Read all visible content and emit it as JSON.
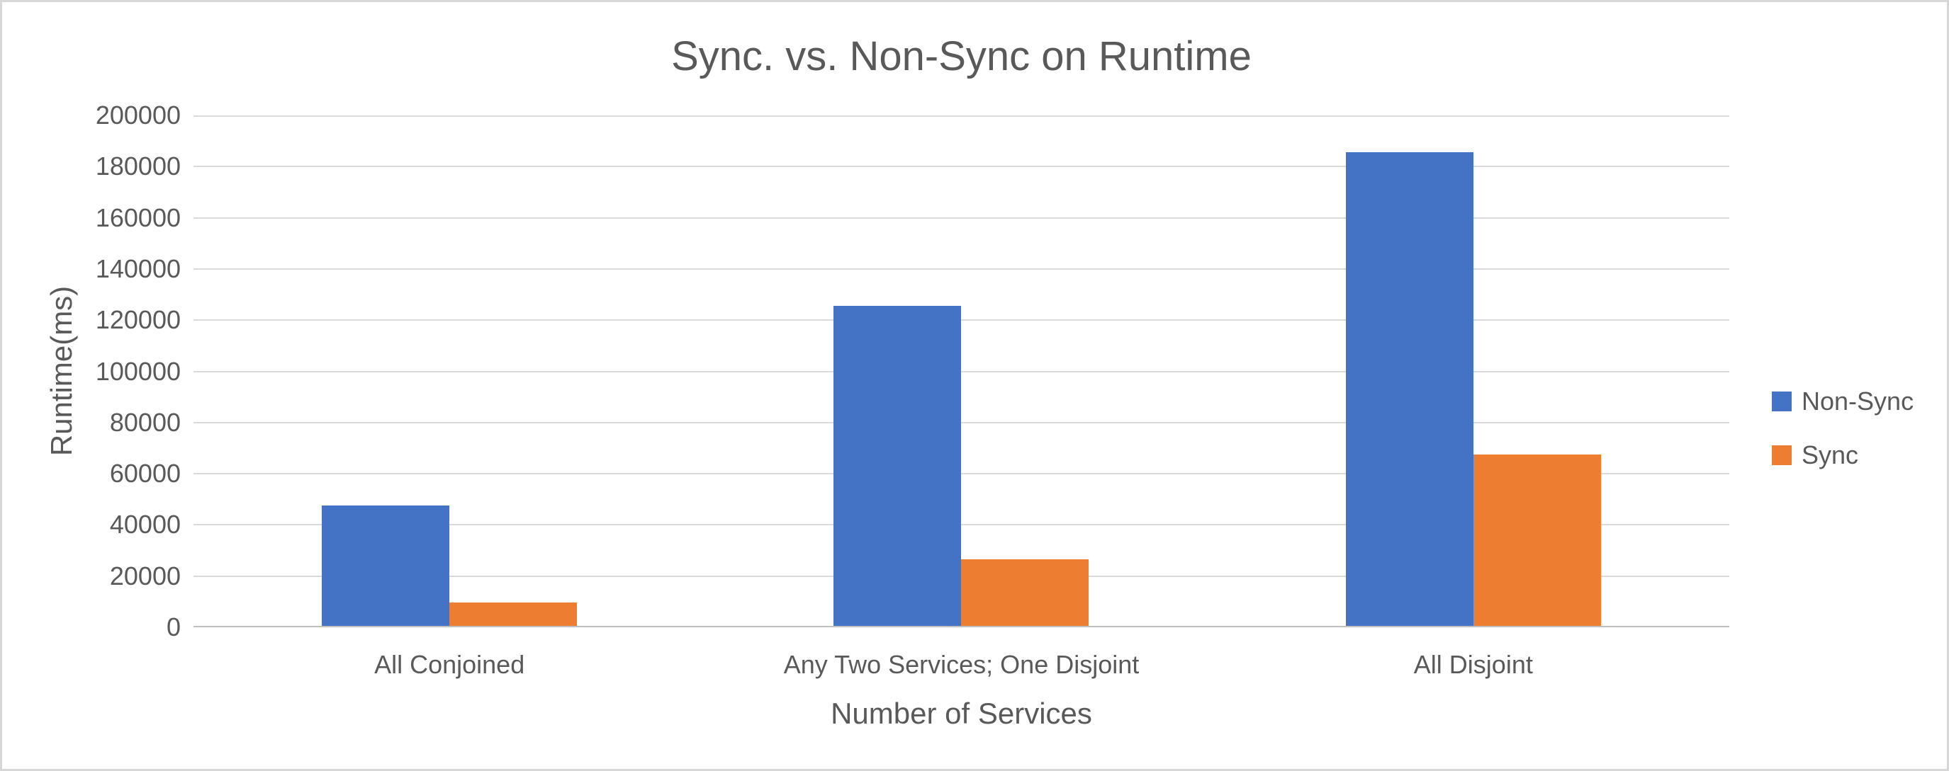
{
  "chart_data": {
    "type": "bar",
    "title": "Sync. vs. Non-Sync on Runtime",
    "xlabel": "Number of Services",
    "ylabel": "Runtime(ms)",
    "categories": [
      "All Conjoined",
      "Any Two Services; One Disjoint",
      "All Disjoint"
    ],
    "series": [
      {
        "name": "Non-Sync",
        "color": "#4472C4",
        "values": [
          47000,
          125000,
          185000
        ]
      },
      {
        "name": "Sync",
        "color": "#ED7D31",
        "values": [
          9000,
          26000,
          67000
        ]
      }
    ],
    "ylim": [
      0,
      200000
    ],
    "ytick_step": 20000,
    "yticks": [
      "0",
      "20000",
      "40000",
      "60000",
      "80000",
      "100000",
      "120000",
      "140000",
      "160000",
      "180000",
      "200000"
    ],
    "grid": "horizontal",
    "legend_position": "right",
    "colors": {
      "text": "#595959",
      "gridline": "#D9D9D9",
      "axis_line": "#BFBFBF",
      "background": "#FFFFFF",
      "frame_border": "#D7D7D7"
    }
  }
}
